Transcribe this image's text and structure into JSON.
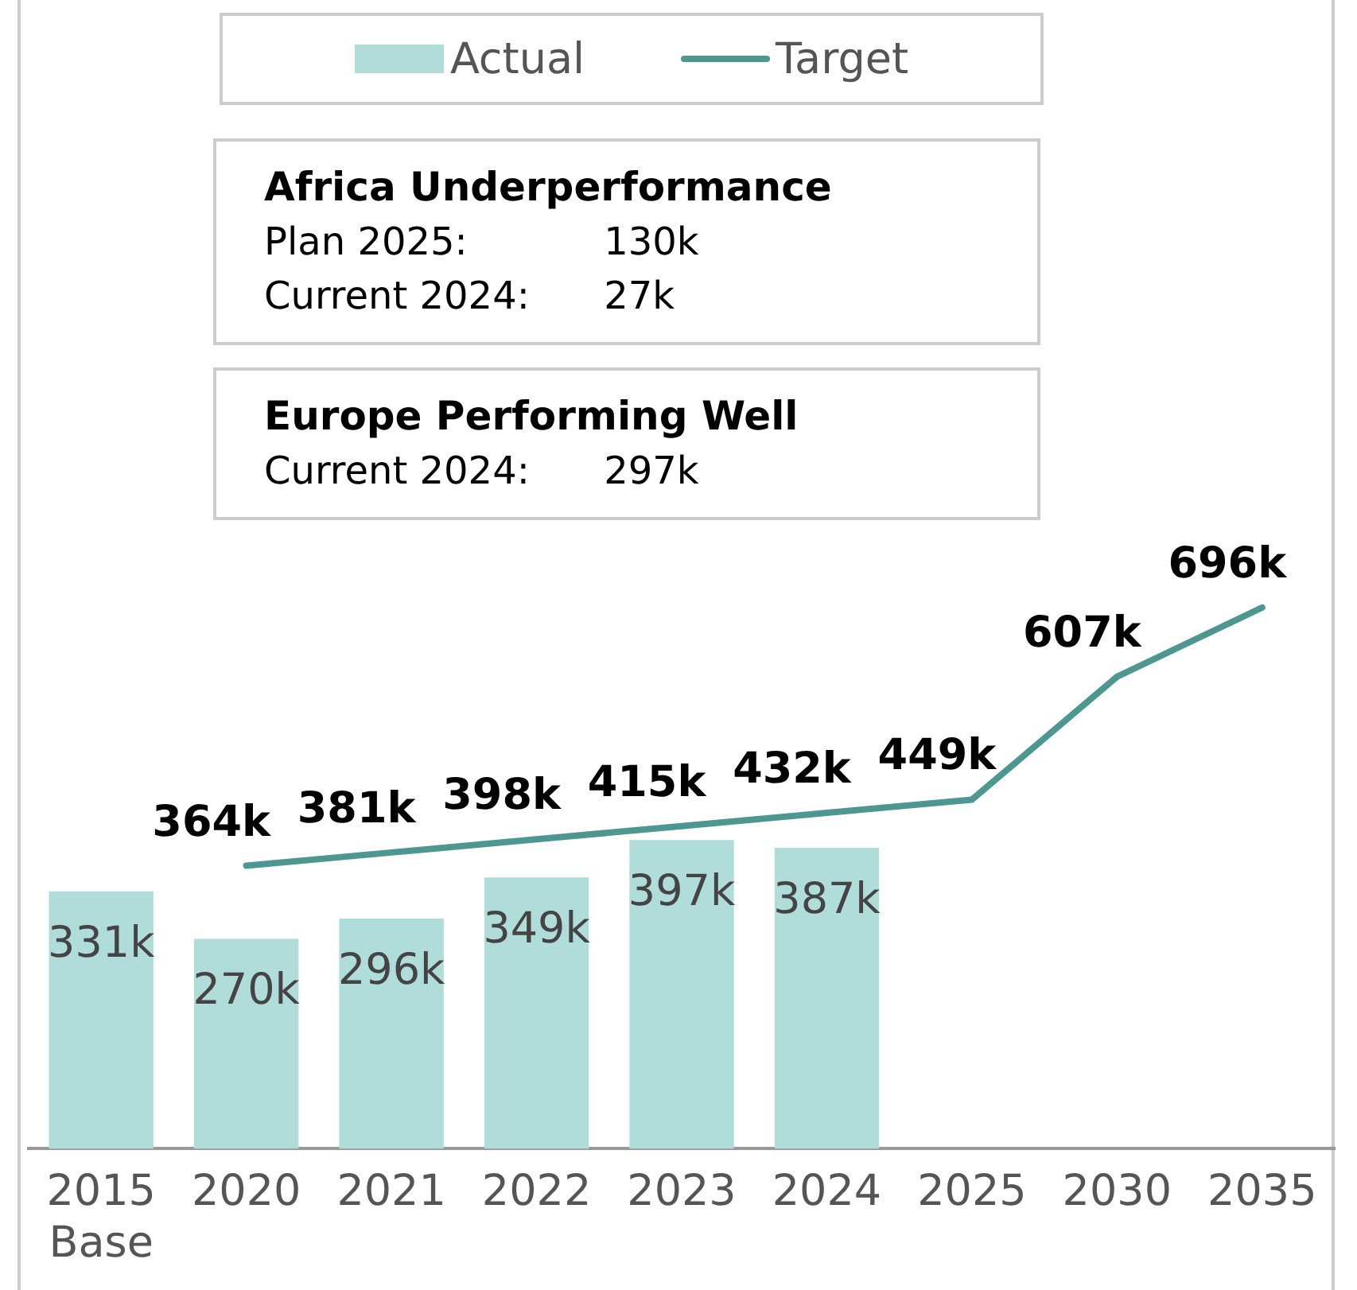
{
  "chart_data": {
    "type": "bar",
    "categories": [
      "2015\nBase",
      "2020",
      "2021",
      "2022",
      "2023",
      "2024",
      "2025",
      "2030",
      "2035"
    ],
    "series": [
      {
        "name": "Actual",
        "color": "#b0dcd9",
        "values": [
          331,
          270,
          296,
          349,
          397,
          387,
          null,
          null,
          null
        ],
        "value_labels": [
          "331k",
          "270k",
          "296k",
          "349k",
          "397k",
          "387k",
          null,
          null,
          null
        ]
      },
      {
        "name": "Target",
        "type": "line",
        "color": "#4e9690",
        "values": [
          null,
          364,
          381,
          398,
          415,
          432,
          449,
          607,
          696
        ],
        "value_labels": [
          null,
          "364k",
          "381k",
          "398k",
          "415k",
          "432k",
          "449k",
          "607k",
          "696k"
        ]
      }
    ],
    "tick_labels": "x",
    "legend": "top",
    "marker": "none",
    "line_style": "solid",
    "annotations": [
      "Africa Underperformance\nPlan 2025:\t130k\nCurrent 2024:\t27k",
      "Europe Performing Well\nCurrent 2024:\t297k"
    ]
  }
}
